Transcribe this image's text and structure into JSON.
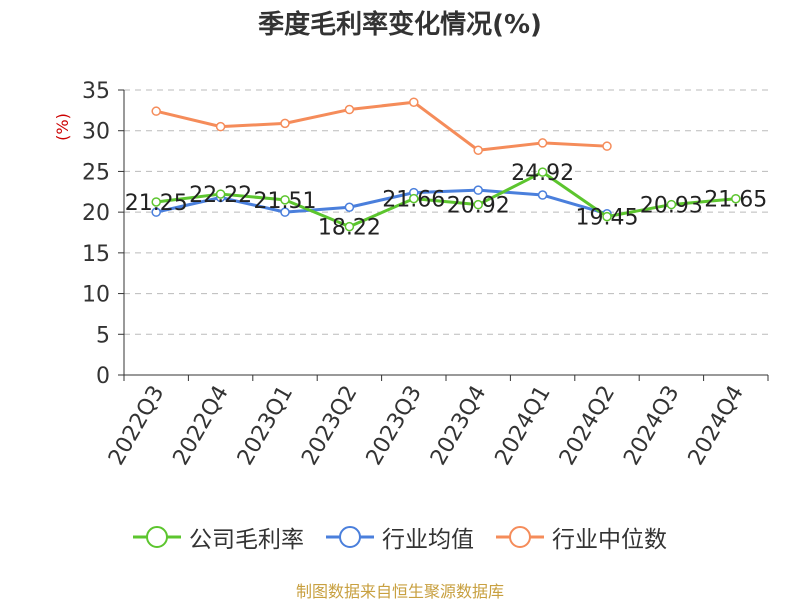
{
  "chart_data": {
    "type": "line",
    "title": "季度毛利率变化情况(%)",
    "ylabel": "(%)",
    "xlabel": "",
    "categories": [
      "2022Q3",
      "2022Q4",
      "2023Q1",
      "2023Q2",
      "2023Q3",
      "2023Q4",
      "2024Q1",
      "2024Q2",
      "2024Q3",
      "2024Q4"
    ],
    "ylim": [
      0,
      35
    ],
    "yticks": [
      0,
      5,
      10,
      15,
      20,
      25,
      30,
      35
    ],
    "grid": true,
    "legend_position": "bottom",
    "series": [
      {
        "name": "公司毛利率",
        "color": "#5cc52e",
        "values": [
          21.25,
          22.22,
          21.51,
          18.22,
          21.66,
          20.92,
          24.92,
          19.45,
          20.93,
          21.65
        ],
        "labels": [
          "21.25",
          "22.22",
          "21.51",
          "18.22",
          "21.66",
          "20.92",
          "24.92",
          "19.45",
          "20.93",
          "21.65"
        ]
      },
      {
        "name": "行业均值",
        "color": "#4a7fdc",
        "values": [
          20.0,
          21.8,
          20.0,
          20.6,
          22.4,
          22.7,
          22.1,
          19.8,
          null,
          null
        ]
      },
      {
        "name": "行业中位数",
        "color": "#f58c5a",
        "values": [
          32.4,
          30.5,
          30.9,
          32.6,
          33.5,
          27.6,
          28.5,
          28.1,
          null,
          null
        ]
      }
    ]
  },
  "source": "制图数据来自恒生聚源数据库"
}
